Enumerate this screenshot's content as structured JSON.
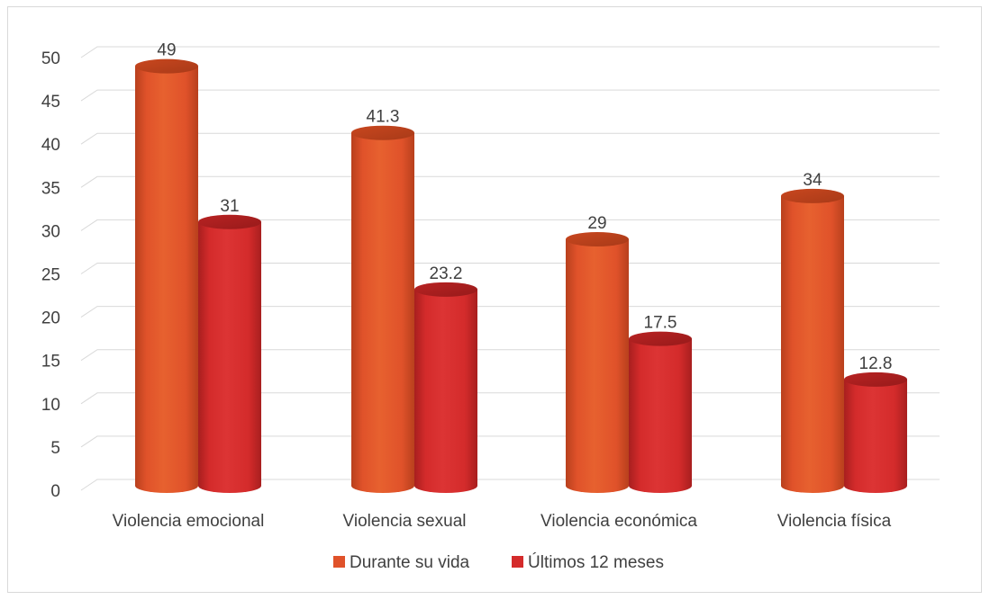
{
  "chart_data": {
    "type": "bar",
    "style": "3d-cylinder",
    "categories": [
      "Violencia emocional",
      "Violencia sexual",
      "Violencia económica",
      "Violencia física"
    ],
    "series": [
      {
        "name": "Durante su vida",
        "color": "#e0522a",
        "values": [
          49,
          41.3,
          29,
          34
        ],
        "labels": [
          "49",
          "41.3",
          "29",
          "34"
        ]
      },
      {
        "name": "Últimos 12 meses",
        "color": "#d42b2b",
        "values": [
          31,
          23.2,
          17.5,
          12.8
        ],
        "labels": [
          "31",
          "23.2",
          "17.5",
          "12.8"
        ]
      }
    ],
    "y_ticks": [
      "0",
      "5",
      "10",
      "15",
      "20",
      "25",
      "30",
      "35",
      "40",
      "45",
      "50"
    ],
    "ylim": [
      0,
      50
    ],
    "grid": true,
    "legend_position": "bottom"
  }
}
